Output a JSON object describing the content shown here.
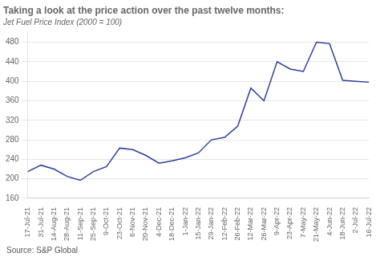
{
  "chart_data": {
    "type": "line",
    "title": "Taking a look at the price action over the past twelve months:",
    "subtitle": "Jet Fuel Price Index (2000 = 100)",
    "source": "Source: S&P Global",
    "categories": [
      "17-Jul-21",
      "31-Jul-21",
      "14-Aug-21",
      "28-Aug-21",
      "11-Sep-21",
      "25-Sep-21",
      "9-Oct-21",
      "23-Oct-21",
      "6-Nov-21",
      "20-Nov-21",
      "4-Dec-21",
      "18-Dec-21",
      "1-Jan-22",
      "15-Jan-22",
      "29-Jan-22",
      "12-Feb-22",
      "26-Feb-22",
      "12-Mar-22",
      "26-Mar-22",
      "9-Apr-22",
      "23-Apr-22",
      "7-May-22",
      "21-May-22",
      "4-Jun-22",
      "18-Jun-22",
      "2-Jul-22",
      "16-Jul-22"
    ],
    "values": [
      215,
      228,
      220,
      205,
      197,
      215,
      225,
      263,
      260,
      248,
      232,
      237,
      243,
      253,
      280,
      285,
      308,
      386,
      360,
      440,
      425,
      420,
      480,
      477,
      402,
      400,
      398
    ],
    "color": "#2b3f9e",
    "ylim": [
      160,
      500
    ],
    "yticks": [
      160,
      200,
      240,
      280,
      320,
      360,
      400,
      440,
      480
    ],
    "grid": true
  }
}
